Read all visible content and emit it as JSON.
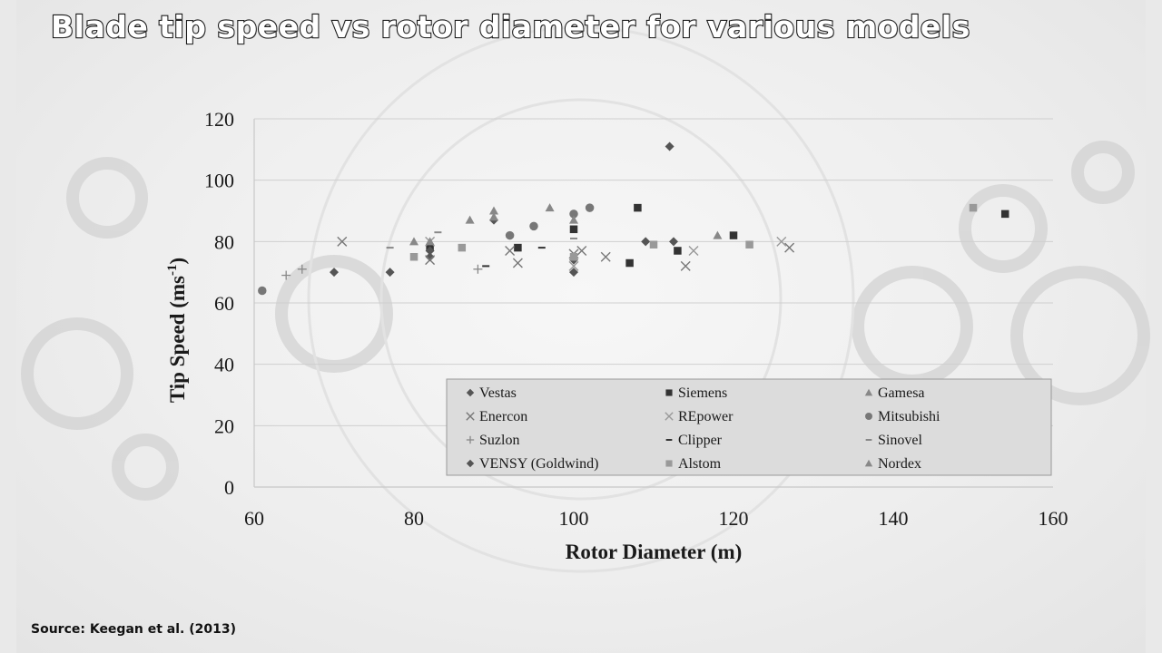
{
  "slide": {
    "title": "Blade tip speed vs rotor diameter for various models",
    "source": "Source: Keegan et al. (2013)"
  },
  "chart_data": {
    "type": "scatter",
    "title": "",
    "xlabel": "Rotor Diameter (m)",
    "ylabel": "Tip Speed (ms-1)",
    "xlim": [
      60,
      160
    ],
    "ylim": [
      0,
      120
    ],
    "xticks": [
      60,
      80,
      100,
      120,
      140,
      160
    ],
    "yticks": [
      0,
      20,
      40,
      60,
      80,
      100,
      120
    ],
    "grid": "horizontal",
    "legend_placement": "lower-right",
    "series": [
      {
        "name": "Vestas",
        "marker": "diamond",
        "color": "#555555",
        "points": [
          [
            70,
            70
          ],
          [
            77,
            70
          ],
          [
            82,
            75
          ],
          [
            90,
            87
          ],
          [
            100,
            70
          ],
          [
            109,
            80
          ],
          [
            112,
            111
          ],
          [
            112.5,
            80
          ]
        ]
      },
      {
        "name": "Siemens",
        "marker": "square",
        "color": "#333333",
        "points": [
          [
            82,
            78
          ],
          [
            93,
            78
          ],
          [
            100,
            84
          ],
          [
            107,
            73
          ],
          [
            108,
            91
          ],
          [
            113,
            77
          ],
          [
            120,
            82
          ],
          [
            154,
            89
          ]
        ]
      },
      {
        "name": "Gamesa",
        "marker": "triangle",
        "color": "#888888",
        "points": [
          [
            80,
            80
          ],
          [
            87,
            87
          ],
          [
            90,
            90
          ],
          [
            97,
            91
          ],
          [
            118,
            82
          ]
        ]
      },
      {
        "name": "Enercon",
        "marker": "x",
        "color": "#777777",
        "points": [
          [
            71,
            80
          ],
          [
            82,
            74
          ],
          [
            92,
            77
          ],
          [
            93,
            73
          ],
          [
            100,
            76
          ],
          [
            101,
            77
          ],
          [
            104,
            75
          ],
          [
            114,
            72
          ],
          [
            127,
            78
          ]
        ]
      },
      {
        "name": "REpower",
        "marker": "x",
        "color": "#999999",
        "points": [
          [
            82,
            80
          ],
          [
            100,
            72
          ],
          [
            115,
            77
          ],
          [
            126,
            80
          ]
        ]
      },
      {
        "name": "Mitsubishi",
        "marker": "circle",
        "color": "#777777",
        "points": [
          [
            61,
            64
          ],
          [
            92,
            82
          ],
          [
            95,
            85
          ],
          [
            100,
            89
          ],
          [
            102,
            91
          ]
        ]
      },
      {
        "name": "Suzlon",
        "marker": "plus",
        "color": "#888888",
        "points": [
          [
            64,
            69
          ],
          [
            66,
            71
          ],
          [
            88,
            71
          ]
        ]
      },
      {
        "name": "Clipper",
        "marker": "dash",
        "color": "#333333",
        "points": [
          [
            89,
            72
          ],
          [
            96,
            78
          ]
        ]
      },
      {
        "name": "Sinovel",
        "marker": "dash",
        "color": "#888888",
        "points": [
          [
            77,
            78
          ],
          [
            83,
            83
          ],
          [
            100,
            81
          ]
        ]
      },
      {
        "name": "VENSY (Goldwind)",
        "marker": "diamond",
        "color": "#555555",
        "points": [
          [
            82,
            77
          ],
          [
            100,
            74
          ]
        ]
      },
      {
        "name": "Alstom",
        "marker": "square",
        "color": "#999999",
        "points": [
          [
            80,
            75
          ],
          [
            86,
            78
          ],
          [
            100,
            75
          ],
          [
            110,
            79
          ],
          [
            122,
            79
          ],
          [
            150,
            91
          ]
        ]
      },
      {
        "name": "Nordex",
        "marker": "triangle",
        "color": "#888888",
        "points": [
          [
            82,
            80
          ],
          [
            90,
            88
          ],
          [
            100,
            87
          ]
        ]
      }
    ]
  }
}
